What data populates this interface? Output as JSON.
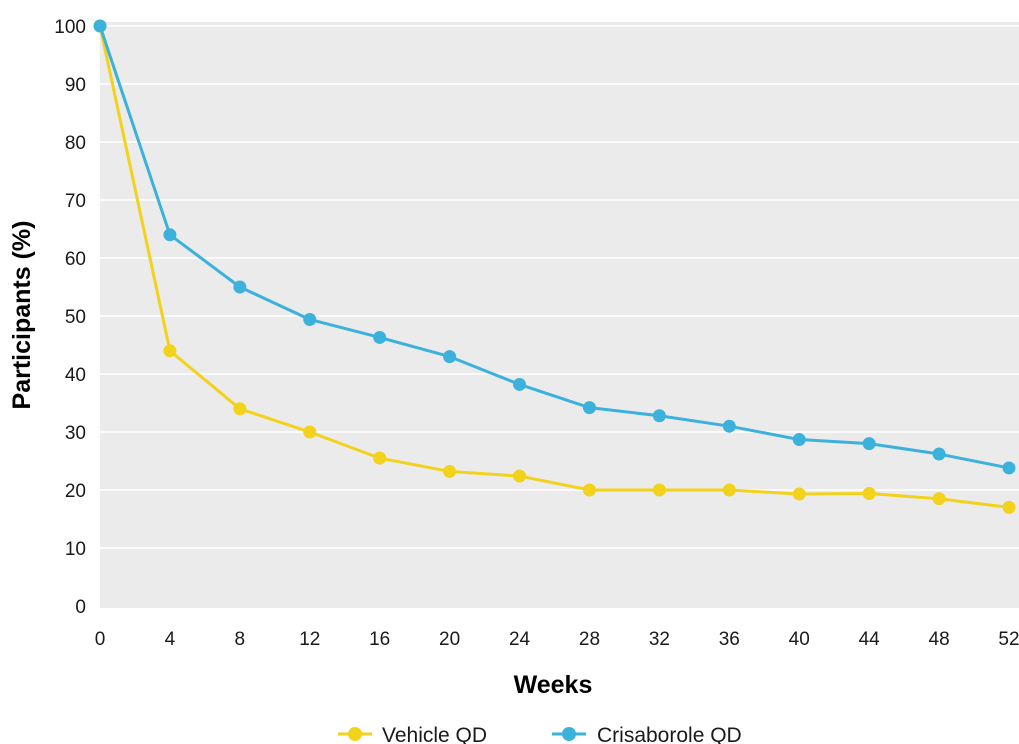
{
  "chart_data": {
    "type": "line",
    "title": "",
    "xlabel": "Weeks",
    "ylabel": "Participants (%)",
    "x": [
      0,
      4,
      8,
      12,
      16,
      20,
      24,
      28,
      32,
      36,
      40,
      44,
      48,
      52
    ],
    "xticks": [
      "0",
      "4",
      "8",
      "12",
      "16",
      "20",
      "24",
      "28",
      "32",
      "36",
      "40",
      "44",
      "48",
      "52"
    ],
    "yticks": [
      "0",
      "10",
      "20",
      "30",
      "40",
      "50",
      "60",
      "70",
      "80",
      "90",
      "100"
    ],
    "xlim": [
      0,
      52
    ],
    "ylim": [
      0,
      100
    ],
    "grid": "horizontal",
    "legend": "bottom-center",
    "series": [
      {
        "name": "Vehicle QD",
        "color": "#f2d21a",
        "values": [
          100,
          44,
          34,
          30,
          25.5,
          23.2,
          22.4,
          20,
          20,
          20,
          19.3,
          19.4,
          18.5,
          17
        ]
      },
      {
        "name": "Crisaborole QD",
        "color": "#3bb1dc",
        "values": [
          100,
          64,
          55,
          49.4,
          46.3,
          43,
          38.2,
          34.2,
          32.8,
          31,
          28.7,
          28,
          26.2,
          23.8
        ]
      }
    ]
  }
}
